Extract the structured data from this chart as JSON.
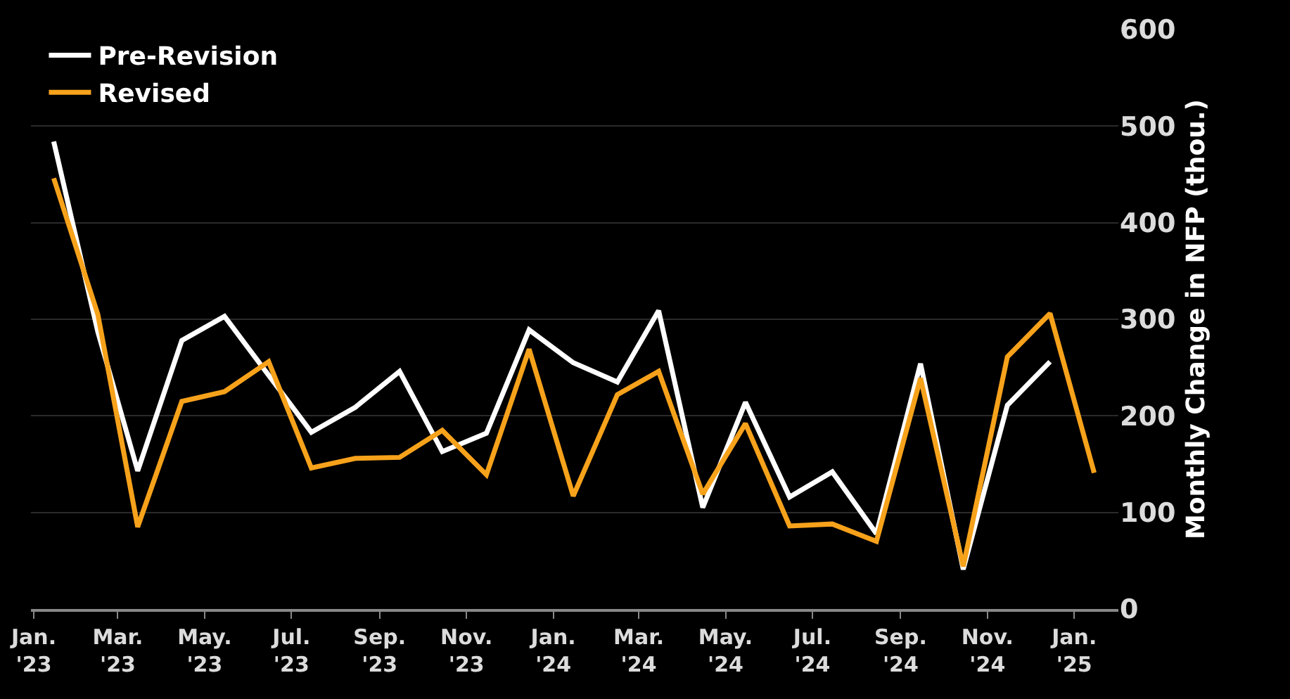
{
  "chart_data": {
    "type": "line",
    "ylabel": "Monthly Change in NFP (thou.)",
    "x": [
      "2023-01-15",
      "2023-02-15",
      "2023-03-15",
      "2023-04-15",
      "2023-05-15",
      "2023-06-15",
      "2023-07-15",
      "2023-08-15",
      "2023-09-15",
      "2023-10-15",
      "2023-11-15",
      "2023-12-15",
      "2024-01-15",
      "2024-02-15",
      "2024-03-15",
      "2024-04-15",
      "2024-05-15",
      "2024-06-15",
      "2024-07-15",
      "2024-08-15",
      "2024-09-15",
      "2024-10-15",
      "2024-11-15",
      "2024-12-15",
      "2025-01-15"
    ],
    "series": [
      {
        "name": "Pre-Revision",
        "color": "#ffffff",
        "values": [
          484,
          287,
          143,
          278,
          303,
          242,
          183,
          209,
          246,
          163,
          182,
          289,
          255,
          235,
          309,
          105,
          214,
          116,
          142,
          78,
          254,
          41,
          211,
          256,
          null
        ]
      },
      {
        "name": "Revised",
        "color": "#f7a21b",
        "values": [
          446,
          305,
          85,
          215,
          225,
          256,
          146,
          156,
          157,
          185,
          139,
          269,
          117,
          222,
          246,
          119,
          192,
          86,
          88,
          70,
          239,
          44,
          261,
          306,
          141
        ]
      }
    ],
    "xlim": [
      "2022-12-30",
      "2025-02-01"
    ],
    "xticks": [
      {
        "value": "2023-01-01",
        "label": "Jan.\n'23"
      },
      {
        "value": "2023-03-01",
        "label": "Mar.\n'23"
      },
      {
        "value": "2023-05-01",
        "label": "May.\n'23"
      },
      {
        "value": "2023-07-01",
        "label": "Jul.\n'23"
      },
      {
        "value": "2023-09-01",
        "label": "Sep.\n'23"
      },
      {
        "value": "2023-11-01",
        "label": "Nov.\n'23"
      },
      {
        "value": "2024-01-01",
        "label": "Jan.\n'24"
      },
      {
        "value": "2024-03-01",
        "label": "Mar.\n'24"
      },
      {
        "value": "2024-05-01",
        "label": "May.\n'24"
      },
      {
        "value": "2024-07-01",
        "label": "Jul.\n'24"
      },
      {
        "value": "2024-09-01",
        "label": "Sep.\n'24"
      },
      {
        "value": "2024-11-01",
        "label": "Nov.\n'24"
      },
      {
        "value": "2025-01-01",
        "label": "Jan.\n'25"
      }
    ],
    "ylim": [
      0,
      600
    ],
    "yticks": [
      0,
      100,
      200,
      300,
      400,
      500,
      600
    ],
    "grid": "y",
    "legend": "top left",
    "line_style": "solid",
    "marker": "none"
  }
}
